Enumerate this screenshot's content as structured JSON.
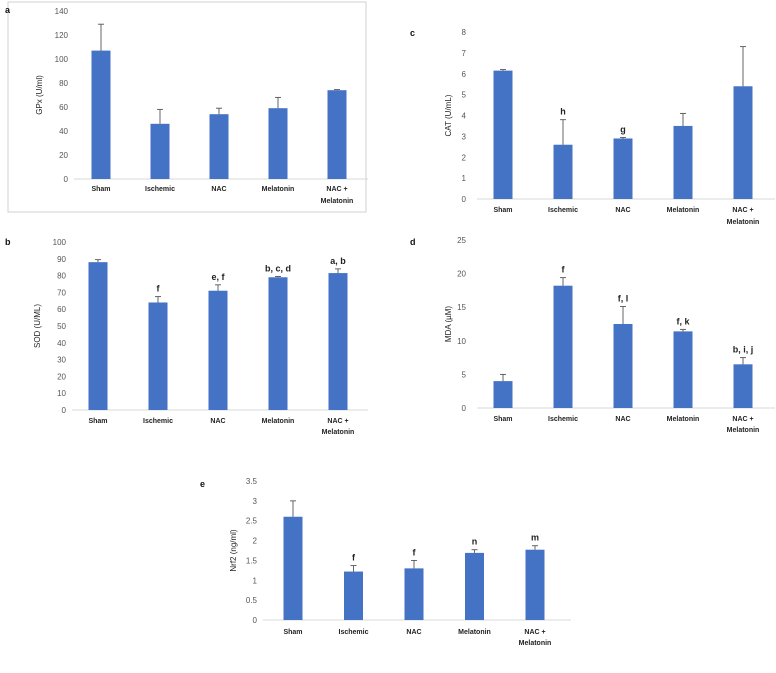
{
  "colors": {
    "bar": "#4472C4",
    "grid_axis": "#d9d9d9",
    "error": "#555555",
    "frame": "#d0d0d0"
  },
  "categories": [
    "Sham",
    "Ischemic",
    "NAC",
    "Melatonin",
    "NAC + Melatonin"
  ],
  "chart_data": [
    {
      "panel": "a",
      "type": "bar",
      "ylabel": "GPx (U/ml)",
      "yticks": [
        0,
        20,
        40,
        60,
        80,
        100,
        120,
        140
      ],
      "ylim": [
        0,
        140
      ],
      "categories": [
        "Sham",
        "Ischemic",
        "NAC",
        "Melatonin",
        "NAC + Melatonin"
      ],
      "values": [
        107,
        46,
        54,
        59,
        74
      ],
      "errors": [
        22,
        12,
        5,
        9,
        0.5
      ],
      "annotations": [
        "",
        "",
        "",
        "",
        ""
      ],
      "framed": true
    },
    {
      "panel": "b",
      "type": "bar",
      "ylabel": "SOD (U/ML)",
      "yticks": [
        0,
        10,
        20,
        30,
        40,
        50,
        60,
        70,
        80,
        90,
        100
      ],
      "ylim": [
        0,
        100
      ],
      "categories": [
        "Sham",
        "Ischemic",
        "NAC",
        "Melatonin",
        "NAC + Melatonin"
      ],
      "values": [
        88,
        64,
        71,
        79,
        81.5
      ],
      "errors": [
        1.5,
        3.5,
        3.5,
        0.5,
        2.5
      ],
      "annotations": [
        "",
        "f",
        "e, f",
        "b, c, d",
        "a, b"
      ],
      "framed": false
    },
    {
      "panel": "c",
      "type": "bar",
      "ylabel": "CAT (U/mL)",
      "yticks": [
        0,
        1,
        2,
        3,
        4,
        5,
        6,
        7,
        8
      ],
      "ylim": [
        0,
        8
      ],
      "categories": [
        "Sham",
        "Ischemic",
        "NAC",
        "Melatonin",
        "NAC + Melatonin"
      ],
      "values": [
        6.15,
        2.6,
        2.9,
        3.5,
        5.4
      ],
      "errors": [
        0.05,
        1.2,
        0.05,
        0.6,
        1.9
      ],
      "annotations": [
        "",
        "h",
        "g",
        "",
        ""
      ],
      "framed": false
    },
    {
      "panel": "d",
      "type": "bar",
      "ylabel": "MDA (µM)",
      "yticks": [
        0,
        5,
        10,
        15,
        20,
        25
      ],
      "ylim": [
        0,
        25
      ],
      "categories": [
        "Sham",
        "Ischemic",
        "NAC",
        "Melatonin",
        "NAC + Melatonin"
      ],
      "values": [
        4,
        18.2,
        12.5,
        11.4,
        6.5
      ],
      "errors": [
        1,
        1.2,
        2.6,
        0.3,
        1
      ],
      "annotations": [
        "",
        "f",
        "f, l",
        "f, k",
        "b, i, j"
      ],
      "framed": false
    },
    {
      "panel": "e",
      "type": "bar",
      "ylabel": "Nrf2  (ng/ml)",
      "yticks": [
        0,
        0.5,
        1,
        1.5,
        2,
        2.5,
        3,
        3.5
      ],
      "ylim": [
        0,
        3.5
      ],
      "categories": [
        "Sham",
        "Ischemic",
        "NAC",
        "Melatonin",
        "NAC + Melatonin"
      ],
      "values": [
        2.6,
        1.22,
        1.3,
        1.69,
        1.77
      ],
      "errors": [
        0.4,
        0.15,
        0.2,
        0.08,
        0.1
      ],
      "annotations": [
        "",
        "f",
        "f",
        "n",
        "m"
      ],
      "framed": false
    }
  ]
}
